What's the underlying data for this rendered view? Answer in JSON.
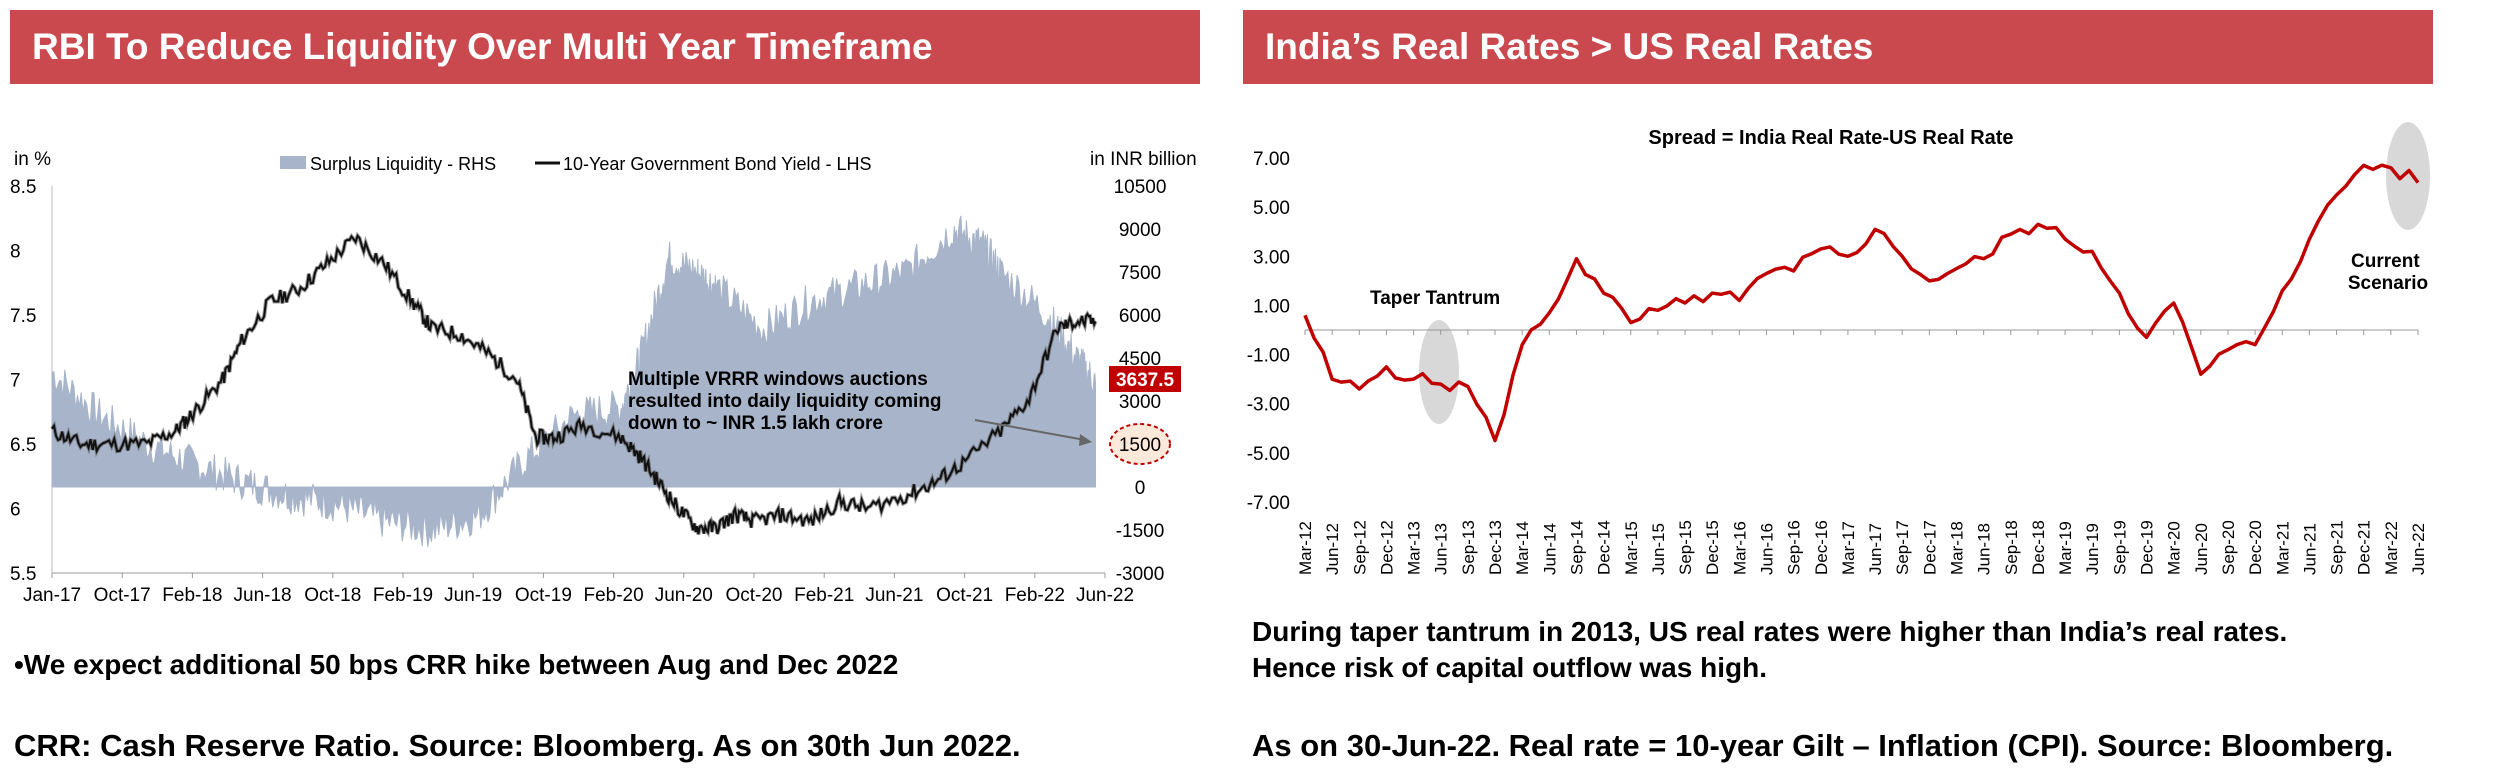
{
  "left_panel": {
    "title": "RBI To Reduce Liquidity Over Multi Year Timeframe",
    "bullet": "•We expect additional 50 bps CRR hike between Aug and Dec 2022",
    "footnote": "CRR: Cash Reserve Ratio. Source: Bloomberg. As on 30th Jun 2022."
  },
  "right_panel": {
    "title": "India’s Real Rates > US Real Rates",
    "note_line1": "During taper tantrum in 2013, US real rates were higher than India’s real rates.",
    "note_line2": "Hence risk of capital outflow was high.",
    "footnote": "As on 30-Jun-22. Real rate = 10-year Gilt – Inflation (CPI). Source: Bloomberg."
  },
  "colors": {
    "banner": "#c9494e",
    "area": "#a7b4c9",
    "bond_line": "#111111",
    "real_rate_line": "#c00000",
    "ellipse": "#d8d8d8",
    "highlight": "#c00000"
  },
  "chart_data": [
    {
      "type": "line",
      "subtype": "area-and-line-dual-axis",
      "title": "",
      "left_axis_label": "in %",
      "right_axis_label": "in INR billion",
      "ylim_left": [
        5.5,
        8.5
      ],
      "ylim_right": [
        -3000,
        10500
      ],
      "y_ticks_left": [
        "8.5",
        "8",
        "7.5",
        "7",
        "6.5",
        "6",
        "5.5"
      ],
      "y_ticks_right": [
        "10500",
        "9000",
        "7500",
        "6000",
        "4500",
        "3000",
        "1500",
        "0",
        "-1500",
        "-3000"
      ],
      "x_ticks": [
        "Jan-17",
        "Oct-17",
        "Feb-18",
        "Jun-18",
        "Oct-18",
        "Feb-19",
        "Jun-19",
        "Oct-19",
        "Feb-20",
        "Jun-20",
        "Oct-20",
        "Feb-21",
        "Jun-21",
        "Oct-21",
        "Feb-22",
        "Jun-22"
      ],
      "series": [
        {
          "name": "Surplus Liquidity - RHS",
          "axis": "right",
          "type": "area",
          "x": [
            2017.0,
            2017.25,
            2017.5,
            2017.75,
            2018.0,
            2018.25,
            2018.5,
            2018.75,
            2019.0,
            2019.25,
            2019.5,
            2019.75,
            2020.0,
            2020.1,
            2020.25,
            2020.4,
            2020.5,
            2020.75,
            2021.0,
            2021.25,
            2021.5,
            2021.75,
            2021.9,
            2022.0,
            2022.25,
            2022.4,
            2022.5
          ],
          "values": [
            4000,
            2500,
            1500,
            800,
            200,
            -300,
            -600,
            -1200,
            -1500,
            -1000,
            1000,
            2500,
            2800,
            4500,
            8000,
            7500,
            7000,
            5500,
            6500,
            7000,
            7500,
            9000,
            8500,
            7500,
            6000,
            4500,
            3637.5
          ]
        },
        {
          "name": "10-Year Government Bond Yield - LHS",
          "axis": "left",
          "type": "line",
          "x": [
            2017.0,
            2017.15,
            2017.3,
            2017.5,
            2017.65,
            2017.75,
            2017.9,
            2018.0,
            2018.15,
            2018.3,
            2018.45,
            2018.6,
            2018.75,
            2018.9,
            2019.0,
            2019.15,
            2019.3,
            2019.45,
            2019.55,
            2019.65,
            2019.8,
            2020.0,
            2020.1,
            2020.2,
            2020.3,
            2020.4,
            2020.5,
            2020.6,
            2020.7,
            2020.85,
            2021.0,
            2021.15,
            2021.3,
            2021.5,
            2021.65,
            2021.8,
            2022.0,
            2022.15,
            2022.3,
            2022.4,
            2022.5
          ],
          "values": [
            6.6,
            6.5,
            6.5,
            6.5,
            6.6,
            6.75,
            7.0,
            7.3,
            7.6,
            7.7,
            7.9,
            8.1,
            7.9,
            7.6,
            7.4,
            7.35,
            7.2,
            7.0,
            6.55,
            6.55,
            6.65,
            6.55,
            6.4,
            6.2,
            6.0,
            5.85,
            5.85,
            5.95,
            5.9,
            5.95,
            5.9,
            6.05,
            6.0,
            6.1,
            6.2,
            6.35,
            6.6,
            6.85,
            7.4,
            7.45,
            7.45
          ]
        }
      ],
      "annotations": [
        "Multiple VRRR windows auctions resulted into daily liquidity coming down to ~ INR 1.5 lakh crore",
        "3637.5",
        "1500"
      ]
    },
    {
      "type": "line",
      "title": "Spread = India Real Rate-US Real Rate",
      "ylim": [
        -7.0,
        7.0
      ],
      "y_ticks": [
        "7.00",
        "5.00",
        "3.00",
        "1.00",
        "-1.00",
        "-3.00",
        "-5.00",
        "-7.00"
      ],
      "categories": [
        "Mar-12",
        "Jun-12",
        "Sep-12",
        "Dec-12",
        "Mar-13",
        "Jun-13",
        "Sep-13",
        "Dec-13",
        "Mar-14",
        "Jun-14",
        "Sep-14",
        "Dec-14",
        "Mar-15",
        "Jun-15",
        "Sep-15",
        "Dec-15",
        "Mar-16",
        "Jun-16",
        "Sep-16",
        "Dec-16",
        "Mar-17",
        "Jun-17",
        "Sep-17",
        "Dec-17",
        "Mar-18",
        "Jun-18",
        "Sep-18",
        "Dec-18",
        "Mar-19",
        "Jun-19",
        "Sep-19",
        "Dec-19",
        "Mar-20",
        "Jun-20",
        "Sep-20",
        "Dec-20",
        "Mar-21",
        "Jun-21",
        "Sep-21",
        "Dec-21",
        "Mar-22",
        "Jun-22"
      ],
      "series": [
        {
          "name": "Spread",
          "values": [
            0.6,
            -2.0,
            -2.4,
            -1.5,
            -2.0,
            -2.2,
            -2.3,
            -4.5,
            -0.6,
            0.7,
            2.9,
            1.5,
            0.3,
            0.8,
            1.1,
            1.5,
            1.2,
            2.3,
            2.4,
            3.3,
            3.0,
            4.1,
            3.0,
            2.0,
            2.5,
            2.9,
            3.9,
            4.3,
            3.7,
            3.2,
            1.5,
            -0.3,
            1.1,
            -1.8,
            -0.8,
            -0.6,
            1.6,
            3.7,
            5.5,
            6.7,
            6.6,
            6.0
          ]
        }
      ],
      "annotations": [
        "Taper Tantrum",
        "Current Scenario"
      ]
    }
  ]
}
